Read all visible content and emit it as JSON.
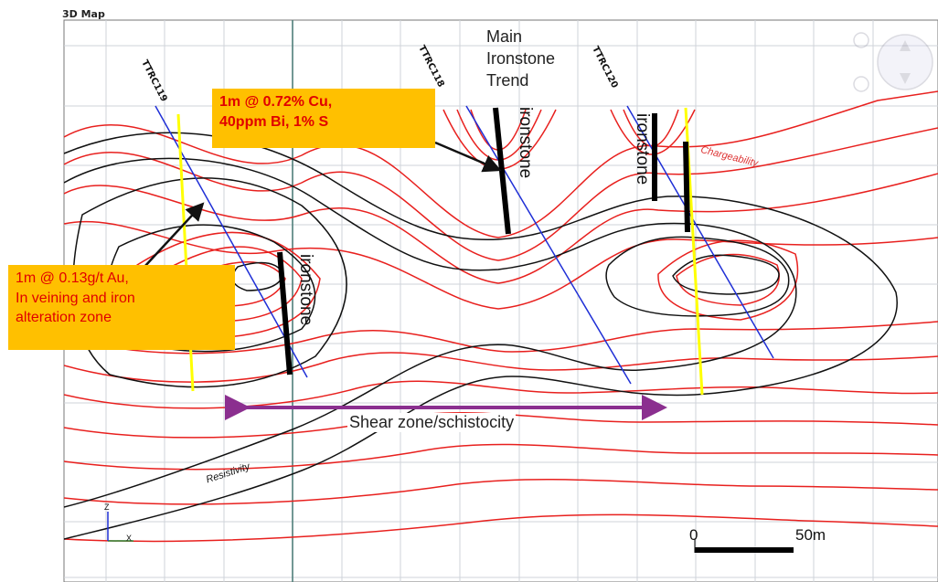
{
  "window": {
    "title": "3D Map"
  },
  "callouts": {
    "cu": {
      "line1": "1m @ 0.72% Cu,",
      "line2": "40ppm Bi, 1% S"
    },
    "au": {
      "line1": "1m @ 0.13g/t Au,",
      "line2": "In veining and iron",
      "line3": "alteration zone"
    }
  },
  "labels": {
    "main_trend": [
      "Main",
      "Ironstone",
      "Trend"
    ],
    "shear": "Shear zone/schistocity",
    "ironstone": "ironstone",
    "chargeability": "Chargeability",
    "resistivity": "Resistivity"
  },
  "drill_holes": [
    "TTRC119",
    "TTRC118",
    "TTRC120"
  ],
  "scale_bar": {
    "start": "0",
    "end": "50m"
  },
  "axes": {
    "x": "X",
    "z": "Z"
  },
  "colors": {
    "chargeability_contour": "#e8201e",
    "resistivity_contour": "#111111",
    "drill_trace": "#1f2fd6",
    "intercept": "#ffff00",
    "callout_fill": "#ffc000",
    "callout_text": "#e00000",
    "shear_arrow": "#8b2f8f"
  }
}
